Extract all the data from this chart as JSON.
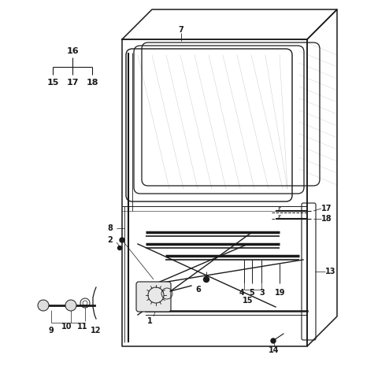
{
  "bg_color": "#ffffff",
  "line_color": "#1a1a1a",
  "fig_width": 4.8,
  "fig_height": 4.79,
  "dpi": 100
}
